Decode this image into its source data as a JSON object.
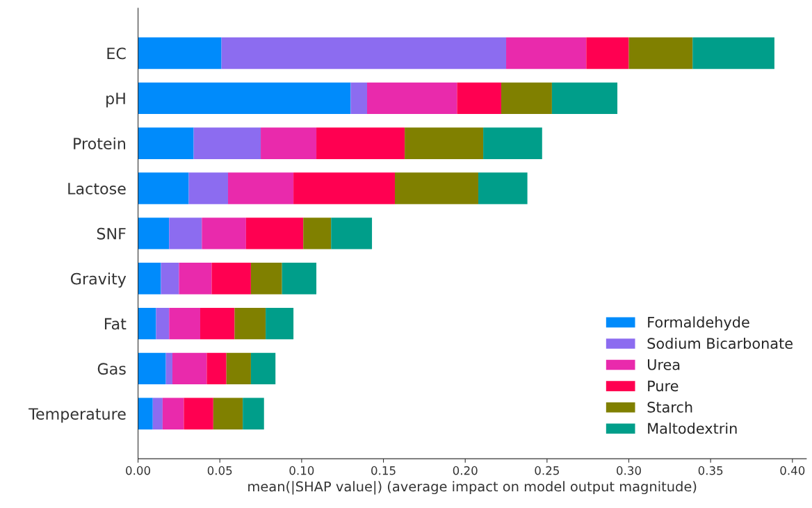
{
  "chart_data": {
    "type": "bar",
    "orientation": "horizontal",
    "stacked": true,
    "xlabel": "mean(|SHAP value|) (average impact on model output magnitude)",
    "categories": [
      "EC",
      "pH",
      "Protein",
      "Lactose",
      "SNF",
      "Gravity",
      "Fat",
      "Gas",
      "Temperature"
    ],
    "xlim": [
      0,
      0.4085
    ],
    "xticks": [
      {
        "value": 0,
        "label": "0.00"
      },
      {
        "value": 0.05,
        "label": "0.05"
      },
      {
        "value": 0.1,
        "label": "0.10"
      },
      {
        "value": 0.15,
        "label": "0.15"
      },
      {
        "value": 0.2,
        "label": "0.20"
      },
      {
        "value": 0.25,
        "label": "0.25"
      },
      {
        "value": 0.3,
        "label": "0.30"
      },
      {
        "value": 0.35,
        "label": "0.35"
      },
      {
        "value": 0.4,
        "label": "0.40"
      }
    ],
    "grid": false,
    "legend": "bottom right",
    "series": [
      {
        "name": "Formaldehyde",
        "color": "#008bfb",
        "values": [
          0.051,
          0.13,
          0.034,
          0.031,
          0.019,
          0.014,
          0.011,
          0.017,
          0.009
        ]
      },
      {
        "name": "Sodium Bicarbonate",
        "color": "#8c6cf0",
        "values": [
          0.174,
          0.01,
          0.041,
          0.024,
          0.02,
          0.011,
          0.008,
          0.004,
          0.006
        ]
      },
      {
        "name": "Urea",
        "color": "#e92aac",
        "values": [
          0.049,
          0.055,
          0.034,
          0.04,
          0.027,
          0.02,
          0.019,
          0.021,
          0.013
        ]
      },
      {
        "name": "Pure",
        "color": "#ff0051",
        "values": [
          0.026,
          0.027,
          0.054,
          0.062,
          0.035,
          0.024,
          0.021,
          0.012,
          0.018
        ]
      },
      {
        "name": "Starch",
        "color": "#808000",
        "values": [
          0.039,
          0.031,
          0.048,
          0.051,
          0.017,
          0.019,
          0.019,
          0.015,
          0.018
        ]
      },
      {
        "name": "Maltodextrin",
        "color": "#009e8a",
        "values": [
          0.05,
          0.04,
          0.036,
          0.03,
          0.025,
          0.021,
          0.017,
          0.015,
          0.013
        ]
      }
    ]
  }
}
